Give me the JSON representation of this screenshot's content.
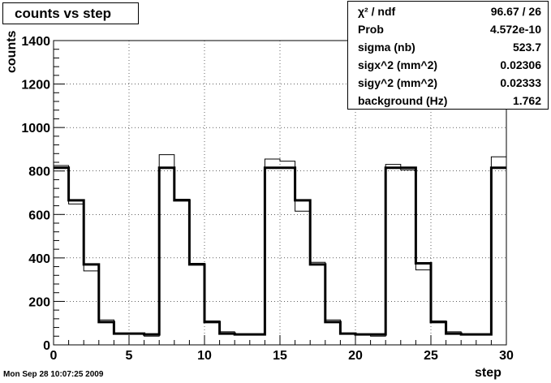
{
  "chart_data": {
    "type": "line",
    "title": "counts vs step",
    "xlabel": "step",
    "ylabel": "counts",
    "xlim": [
      0,
      30
    ],
    "ylim": [
      0,
      1400
    ],
    "xticks": [
      "0",
      "5",
      "10",
      "15",
      "20",
      "25",
      "30"
    ],
    "yticks": [
      "0",
      "200",
      "400",
      "600",
      "800",
      "1000",
      "1200",
      "1400"
    ],
    "grid": true,
    "series": [
      {
        "role": "data histogram (thin)",
        "x_bins_left": [
          0,
          1,
          2,
          3,
          4,
          5,
          6,
          7,
          8,
          9,
          10,
          11,
          12,
          13,
          14,
          15,
          16,
          17,
          18,
          19,
          20,
          21,
          22,
          23,
          24,
          25,
          26,
          27,
          28,
          29
        ],
        "values": [
          825,
          648,
          340,
          115,
          50,
          50,
          40,
          875,
          670,
          375,
          110,
          60,
          45,
          45,
          855,
          845,
          615,
          380,
          115,
          50,
          48,
          40,
          830,
          805,
          345,
          110,
          60,
          50,
          45,
          865
        ]
      },
      {
        "role": "fit (thick)",
        "x_bins_left": [
          0,
          1,
          2,
          3,
          4,
          5,
          6,
          7,
          8,
          9,
          10,
          11,
          12,
          13,
          14,
          15,
          16,
          17,
          18,
          19,
          20,
          21,
          22,
          23,
          24,
          25,
          26,
          27,
          28,
          29
        ],
        "values": [
          815,
          665,
          370,
          105,
          52,
          52,
          48,
          815,
          665,
          370,
          105,
          52,
          48,
          48,
          815,
          815,
          665,
          370,
          105,
          52,
          48,
          48,
          815,
          815,
          375,
          105,
          52,
          48,
          48,
          815
        ]
      }
    ]
  },
  "stats": {
    "rows": [
      {
        "name": "χ² / ndf",
        "value": "96.67 / 26"
      },
      {
        "name": "Prob",
        "value": "4.572e-10"
      },
      {
        "name": "sigma (nb)",
        "value": "523.7"
      },
      {
        "name": "sigx^2 (mm^2)",
        "value": "0.02306"
      },
      {
        "name": "sigy^2 (mm^2)",
        "value": "0.02333"
      },
      {
        "name": "background (Hz)",
        "value": "1.762"
      }
    ]
  },
  "footer": "Mon Sep 28 10:07:25 2009"
}
